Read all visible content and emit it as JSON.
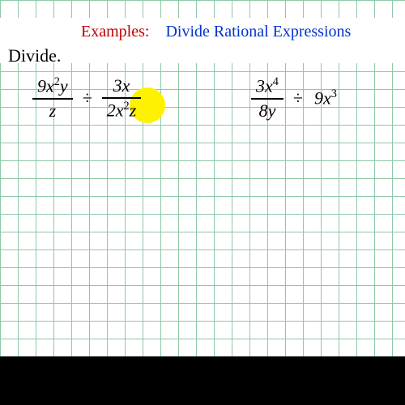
{
  "header": {
    "examples_label": "Examples:",
    "title": "Divide Rational Expressions"
  },
  "instruction": "Divide.",
  "problems": {
    "p1": {
      "frac1_num": "9x²y",
      "frac1_den": "z",
      "operator": "÷",
      "frac2_num": "3x",
      "frac2_den": "2x²z"
    },
    "p2": {
      "frac1_num": "3x⁴",
      "frac1_den": "8y",
      "operator": "÷",
      "term2": "9x³"
    }
  },
  "styling": {
    "grid_color": "#8ec8a8",
    "grid_size": 22,
    "examples_color": "#c00000",
    "title_color": "#0033cc",
    "highlight_color": "#fff200",
    "font_family": "Times New Roman",
    "math_fontsize": 22
  }
}
